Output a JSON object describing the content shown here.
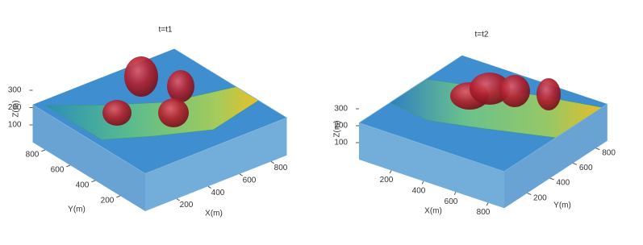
{
  "chart_data": [
    {
      "type": "surface3d",
      "title": "t=t1",
      "xlabel": "X(m)",
      "ylabel": "Y(m)",
      "zlabel": "Z(m)",
      "xlim": [
        0,
        900
      ],
      "ylim": [
        0,
        900
      ],
      "zlim": [
        0,
        350
      ],
      "xticks": [
        200,
        400,
        600,
        800
      ],
      "yticks": [
        200,
        400,
        600,
        800
      ],
      "zticks": [
        100,
        200,
        300
      ]
    },
    {
      "type": "surface3d",
      "title": "t=t2",
      "xlabel": "X(m)",
      "ylabel": "Y(m)",
      "zlabel": "Z(m)",
      "xlim": [
        0,
        900
      ],
      "ylim": [
        0,
        900
      ],
      "zlim": [
        0,
        350
      ],
      "xticks": [
        200,
        400,
        600,
        800
      ],
      "yticks": [
        200,
        400,
        600,
        800
      ],
      "zticks": [
        100,
        200,
        300
      ]
    }
  ]
}
